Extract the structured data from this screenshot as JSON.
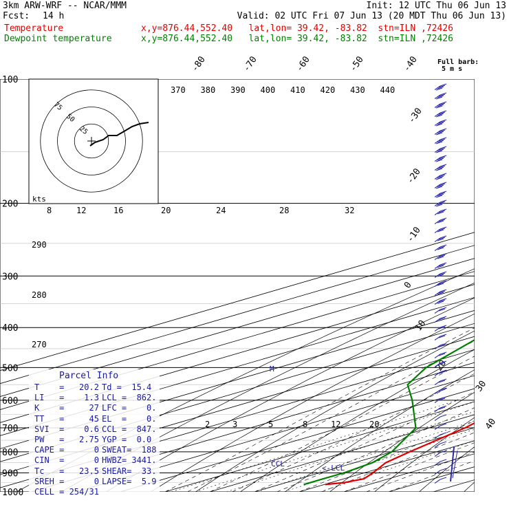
{
  "header": {
    "model": "3km ARW-WRF -- NCAR/MMM",
    "init": "Init: 12 UTC Thu 06 Jun 13",
    "fcst_label": "Fcst:",
    "fcst_value": "14 h",
    "valid": "Valid: 02 UTC Fri 07 Jun 13 (20 MDT Thu 06 Jun 13)",
    "temp_label": "Temperature",
    "temp_loc": "x,y=876.44,552.40   lat,lon= 39.42, -83.82  stn=ILN ,72426",
    "dew_label": "Dewpoint temperature",
    "dew_loc": "x,y=876.44,552.40   lat,lon= 39.42, -83.82  stn=ILN ,72426",
    "barb_title": "Full barb:",
    "barb_unit": "5 m s",
    "colors": {
      "temperature": "#e00000",
      "dewpoint": "#008000",
      "parcel_info": "#1a1aa0",
      "barbs": "#2a2aa8"
    }
  },
  "chart_data": {
    "type": "line",
    "pressure_axis": {
      "ticks": [
        100,
        200,
        300,
        400,
        500,
        600,
        700,
        800,
        900,
        1000
      ],
      "ylim": [
        1000,
        100
      ],
      "log_scale": true
    },
    "isotherm_labels_top": [
      "-80",
      "-70",
      "-60",
      "-50",
      "-40"
    ],
    "isotherm_labels_right": [
      "-30",
      "-20",
      "-10",
      "0",
      "10",
      "20",
      "30",
      "40"
    ],
    "theta_labels": [
      "370",
      "380",
      "390",
      "400",
      "410",
      "420",
      "430",
      "440"
    ],
    "theta_labels_left": [
      "290",
      "280",
      "270"
    ],
    "mixing_labels_mid": [
      "8",
      "12",
      "16",
      "20",
      "24",
      "28",
      "32"
    ],
    "mixing_labels_low": [
      "2",
      "3",
      "5",
      "8",
      "12",
      "20"
    ],
    "series": [
      {
        "name": "Temperature",
        "points": [
          [
            100,
            -61
          ],
          [
            150,
            -59
          ],
          [
            170,
            -63
          ],
          [
            200,
            -56.5
          ],
          [
            300,
            -40
          ],
          [
            400,
            -22
          ],
          [
            500,
            -9
          ],
          [
            600,
            -1
          ],
          [
            700,
            8
          ],
          [
            800,
            14
          ],
          [
            850,
            17
          ],
          [
            900,
            22
          ],
          [
            930,
            24.5
          ],
          [
            950,
            23
          ],
          [
            960,
            20.2
          ]
        ]
      },
      {
        "name": "Dewpoint temperature",
        "points": [
          [
            100,
            -87
          ],
          [
            150,
            -85
          ],
          [
            170,
            -88
          ],
          [
            200,
            -79
          ],
          [
            250,
            -81
          ],
          [
            300,
            -65
          ],
          [
            400,
            -62
          ],
          [
            500,
            -47
          ],
          [
            550,
            -38
          ],
          [
            600,
            -25
          ],
          [
            700,
            -3
          ],
          [
            800,
            10
          ],
          [
            850,
            14
          ],
          [
            900,
            15.5
          ],
          [
            930,
            15.4
          ],
          [
            960,
            15.4
          ]
        ]
      }
    ],
    "parcel_info": {
      "title": "Parcel Info",
      "rows": [
        [
          "T    =   20.2",
          "Td =  15.4"
        ],
        [
          "LI   =    1.3",
          "LCL =  862."
        ],
        [
          "K    =     27",
          "LFC =    0."
        ],
        [
          "TT   =     45",
          "EL  =    0."
        ],
        [
          "SVI  =    0.6",
          "CCL =  847."
        ],
        [
          "PW   =   2.75",
          "YGP =  0.0"
        ],
        [
          "CAPE =      0",
          "SWEAT=  188"
        ],
        [
          "CIN  =      0",
          "HWBZ= 3441."
        ],
        [
          "Tc   =   23.5",
          "SHEAR=  33."
        ],
        [
          "SREH =      0",
          "LAPSE=  5.9"
        ],
        [
          "CELL = 254/31",
          ""
        ]
      ]
    },
    "level_marks": {
      "ccl": "CCL",
      "lcl": "<-LCL"
    },
    "hodograph": {
      "unit": "kts",
      "ring_labels": [
        "25",
        "50",
        "75"
      ]
    }
  }
}
